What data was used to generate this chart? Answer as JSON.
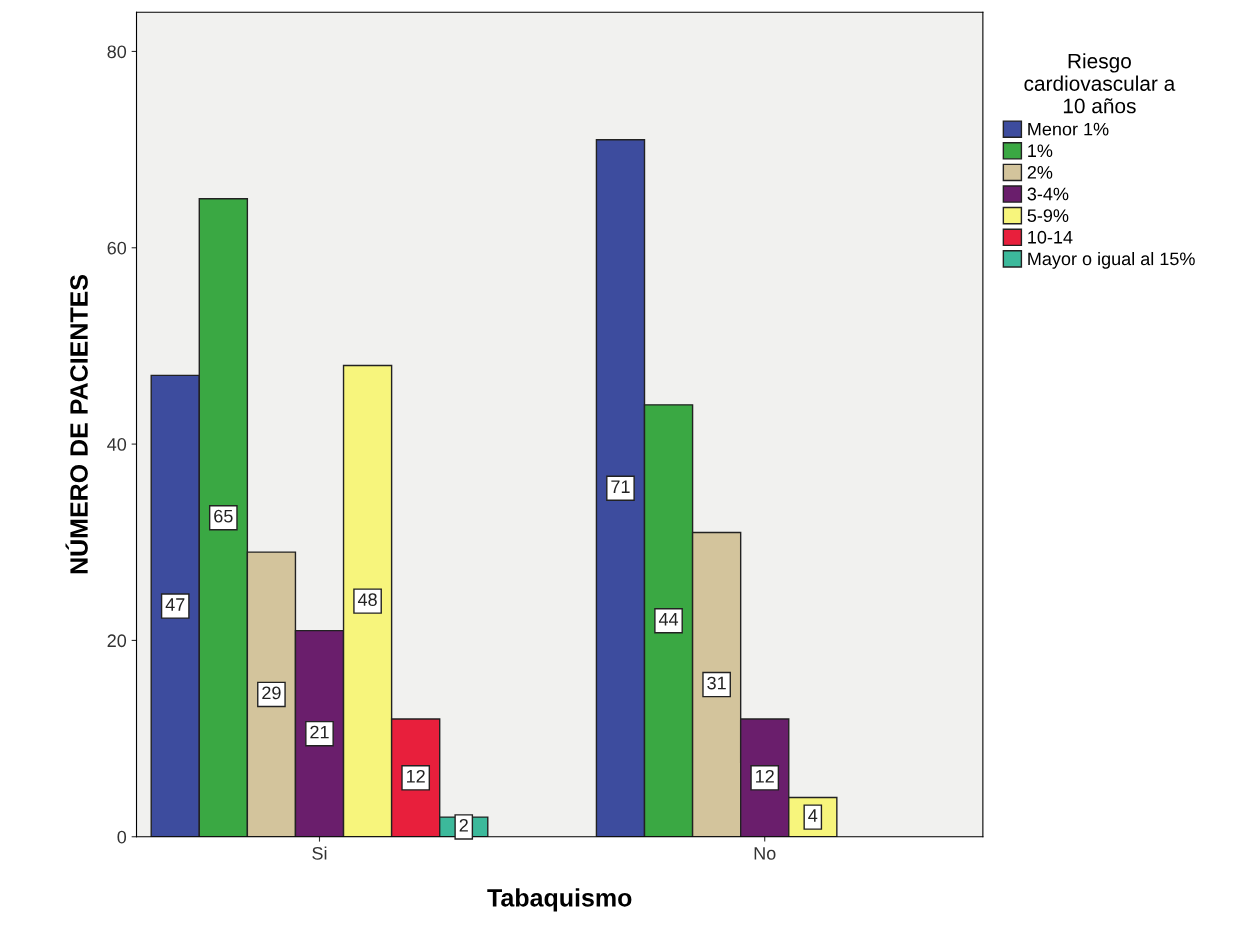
{
  "chart_data": {
    "type": "bar",
    "xlabel": "Tabaquismo",
    "ylabel": "NÚMERO DE PACIENTES",
    "legend_title": "Riesgo\ncardiovascular a\n10 años",
    "categories": [
      "Si",
      "No"
    ],
    "series": [
      {
        "name": "Menor 1%",
        "color": "#3d4c9e",
        "values": [
          47,
          71
        ]
      },
      {
        "name": "1%",
        "color": "#3aa843",
        "values": [
          65,
          44
        ]
      },
      {
        "name": "2%",
        "color": "#d3c49c",
        "values": [
          29,
          31
        ]
      },
      {
        "name": "3-4%",
        "color": "#6a1e6c",
        "values": [
          21,
          12
        ]
      },
      {
        "name": "5-9%",
        "color": "#f7f57c",
        "values": [
          48,
          4
        ]
      },
      {
        "name": "10-14",
        "color": "#e81f3c",
        "values": [
          12,
          null
        ]
      },
      {
        "name": "Mayor o igual al 15%",
        "color": "#3cb99b",
        "values": [
          2,
          null
        ]
      }
    ],
    "ylim": [
      0,
      84
    ],
    "yticks": [
      0,
      20,
      40,
      60,
      80
    ],
    "data_labels": true,
    "legend": "top right",
    "grid": false
  }
}
